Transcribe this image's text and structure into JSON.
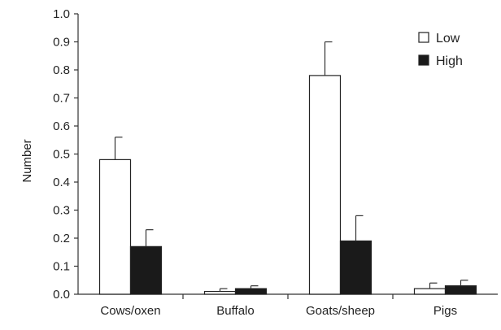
{
  "chart_data": {
    "type": "bar",
    "title": "",
    "xlabel": "",
    "ylabel": "Number",
    "ylim": [
      0,
      1.0
    ],
    "yticks": [
      "0.0",
      "0.1",
      "0.2",
      "0.3",
      "0.4",
      "0.5",
      "0.6",
      "0.7",
      "0.8",
      "0.9",
      "1.0"
    ],
    "categories": [
      "Cows/oxen",
      "Buffalo",
      "Goats/sheep",
      "Pigs"
    ],
    "series": [
      {
        "name": "Low",
        "color": "#ffffff",
        "values": [
          0.48,
          0.01,
          0.78,
          0.02
        ],
        "error": [
          0.08,
          0.01,
          0.12,
          0.02
        ]
      },
      {
        "name": "High",
        "color": "#1a1a1a",
        "values": [
          0.17,
          0.02,
          0.19,
          0.03
        ],
        "error": [
          0.06,
          0.01,
          0.09,
          0.02
        ]
      }
    ],
    "grid": false,
    "legend_position": "top-right",
    "error_bars": "upper"
  }
}
